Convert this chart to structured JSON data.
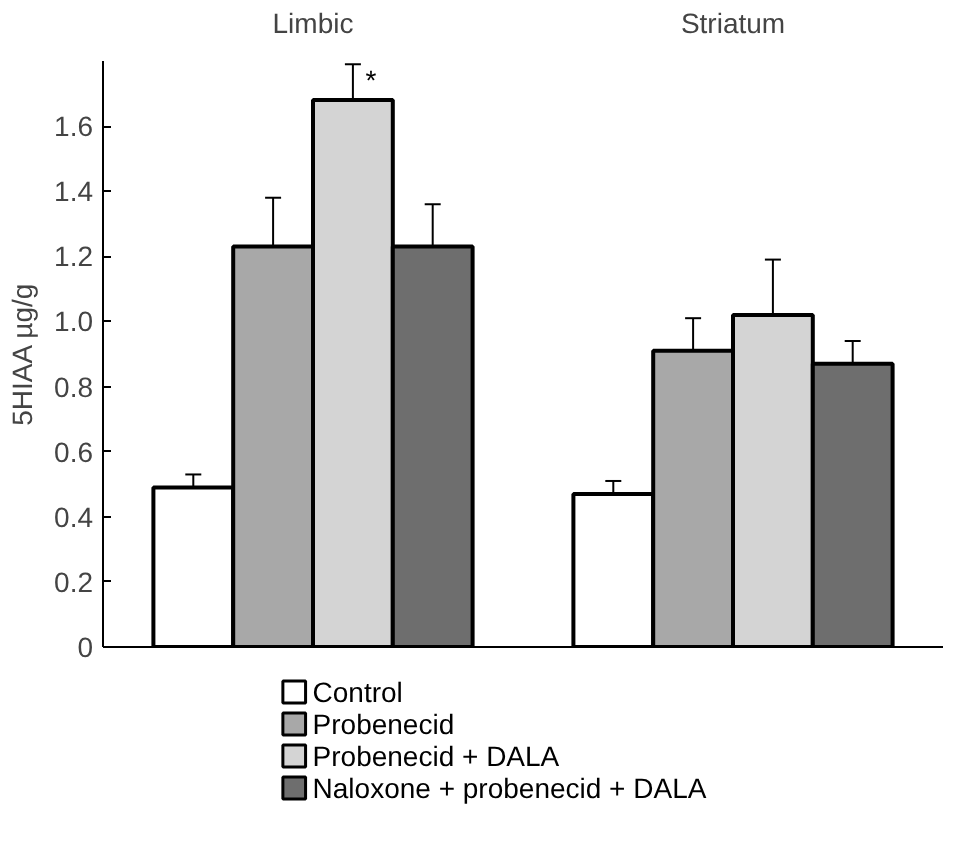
{
  "chart_data": {
    "type": "bar",
    "ylabel": "5HIAA µg/g",
    "categories": [
      "Limbic",
      "Striatum"
    ],
    "series": [
      {
        "name": "Control",
        "color": "#ffffff",
        "values": [
          0.49,
          0.47
        ],
        "errors": [
          0.04,
          0.04
        ]
      },
      {
        "name": "Probenecid",
        "color": "#a8a8a8",
        "values": [
          1.23,
          0.91
        ],
        "errors": [
          0.15,
          0.1
        ]
      },
      {
        "name": "Probenecid + DALA",
        "color": "#d4d4d4",
        "values": [
          1.68,
          1.02
        ],
        "errors": [
          0.11,
          0.17
        ]
      },
      {
        "name": "Naloxone + probenecid + DALA",
        "color": "#6e6e6e",
        "values": [
          1.23,
          0.87
        ],
        "errors": [
          0.13,
          0.07
        ]
      }
    ],
    "ylim": [
      0,
      1.8
    ],
    "yticks": [
      0,
      0.2,
      0.4,
      0.6,
      0.8,
      {
        "value": 1,
        "label": "1.0"
      },
      1.2,
      1.4,
      1.6
    ],
    "annotations": [
      "*"
    ],
    "grid": false,
    "legend": "bottom"
  }
}
